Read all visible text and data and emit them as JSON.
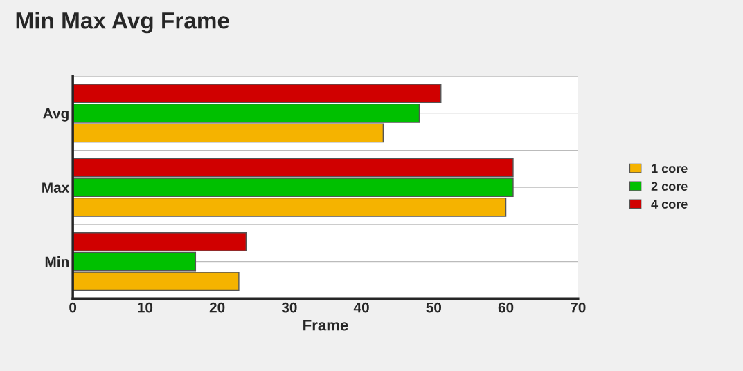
{
  "chart_data": {
    "type": "bar",
    "orientation": "horizontal",
    "title": "Min Max Avg Frame",
    "xlabel": "Frame",
    "categories": [
      "Avg",
      "Max",
      "Min"
    ],
    "series": [
      {
        "name": "1 core",
        "color": "#f5b300",
        "values": [
          43,
          60,
          23
        ]
      },
      {
        "name": "2 core",
        "color": "#00c000",
        "values": [
          48,
          61,
          17
        ]
      },
      {
        "name": "4 core",
        "color": "#d00000",
        "values": [
          51,
          61,
          24
        ]
      }
    ],
    "xlim": [
      0,
      70
    ],
    "xticks": [
      0,
      10,
      20,
      30,
      40,
      50,
      60,
      70
    ],
    "grid": "y",
    "legend": "right"
  }
}
